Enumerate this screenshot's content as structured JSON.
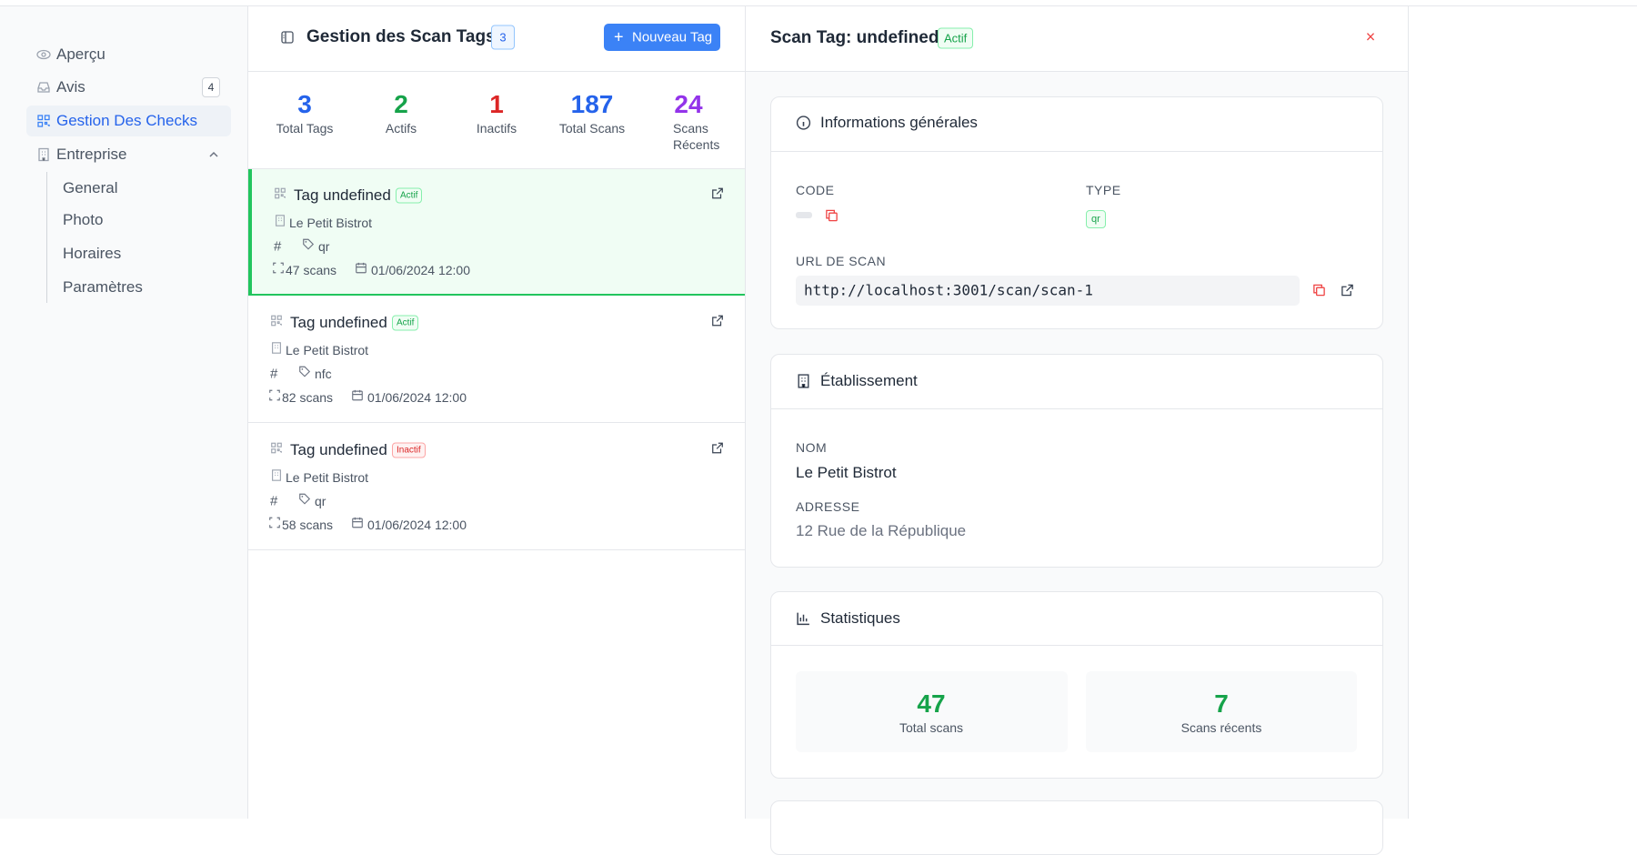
{
  "sidebar": {
    "items": [
      {
        "label": "Aperçu"
      },
      {
        "label": "Avis",
        "badge": 4
      },
      {
        "label": "Gestion Des Checks"
      },
      {
        "label": "Entreprise"
      }
    ],
    "subitems": [
      "General",
      "Photo",
      "Horaires",
      "Paramètres"
    ]
  },
  "list": {
    "title": "Gestion des Scan Tags",
    "count": 3,
    "new_button": "Nouveau Tag",
    "stats": [
      {
        "value": 3,
        "label": "Total Tags",
        "color": "#2563eb"
      },
      {
        "value": 2,
        "label": "Actifs",
        "color": "#16a34a"
      },
      {
        "value": 1,
        "label": "Inactifs",
        "color": "#dc2626"
      },
      {
        "value": 187,
        "label": "Total Scans",
        "color": "#2563eb"
      },
      {
        "value": 24,
        "label": "Scans Récents",
        "color": "#9333ea"
      }
    ],
    "tags": [
      {
        "name": "Tag undefined",
        "status": "Actif",
        "place": "Le Petit Bistrot",
        "hash": "#",
        "type": "qr",
        "scans": "47 scans",
        "date": "01/06/2024 12:00"
      },
      {
        "name": "Tag undefined",
        "status": "Actif",
        "place": "Le Petit Bistrot",
        "hash": "#",
        "type": "nfc",
        "scans": "82 scans",
        "date": "01/06/2024 12:00"
      },
      {
        "name": "Tag undefined",
        "status": "Inactif",
        "place": "Le Petit Bistrot",
        "hash": "#",
        "type": "qr",
        "scans": "58 scans",
        "date": "01/06/2024 12:00"
      }
    ]
  },
  "detail": {
    "title": "Scan Tag: undefined",
    "status": "Actif",
    "info": {
      "title": "Informations générales",
      "code_label": "CODE",
      "type_label": "TYPE",
      "type": "qr",
      "url_label": "URL DE SCAN",
      "url": "http://localhost:3001/scan/scan-1"
    },
    "establishment": {
      "title": "Établissement",
      "name_label": "NOM",
      "name": "Le Petit Bistrot",
      "address_label": "ADRESSE",
      "address": "12 Rue de la République"
    },
    "stats": {
      "title": "Statistiques",
      "total": 47,
      "total_label": "Total scans",
      "recent": 7,
      "recent_label": "Scans récents"
    }
  }
}
